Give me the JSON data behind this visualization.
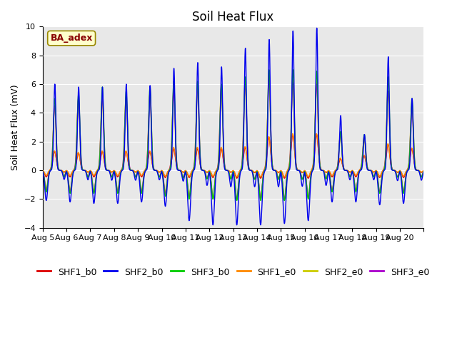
{
  "title": "Soil Heat Flux",
  "ylabel": "Soil Heat Flux (mV)",
  "xlabel": "",
  "ylim": [
    -4,
    10
  ],
  "yticks": [
    -4,
    -2,
    0,
    2,
    4,
    6,
    8,
    10
  ],
  "n_days": 16,
  "series_colors": {
    "SHF1_b0": "#dd0000",
    "SHF2_b0": "#0000ee",
    "SHF3_b0": "#00cc00",
    "SHF1_e0": "#ff8800",
    "SHF2_e0": "#cccc00",
    "SHF3_e0": "#aa00cc"
  },
  "annotation_text": "BA_adex",
  "bg_color": "#e8e8e8",
  "title_fontsize": 12,
  "label_fontsize": 9,
  "tick_fontsize": 8,
  "legend_fontsize": 9,
  "linewidth": 1.0,
  "shf2_b0_peaks": [
    6.0,
    5.8,
    5.8,
    6.0,
    5.9,
    7.1,
    7.5,
    7.2,
    8.5,
    9.1,
    9.7,
    9.9,
    3.8,
    2.5,
    7.9,
    5.0
  ],
  "shf2_b0_troughs": [
    2.1,
    2.2,
    2.3,
    2.3,
    2.2,
    2.5,
    3.5,
    3.8,
    3.8,
    3.8,
    3.7,
    3.5,
    2.2,
    2.2,
    2.4,
    2.3
  ],
  "shf3_b0_peaks": [
    5.0,
    5.3,
    5.8,
    5.5,
    5.8,
    6.2,
    6.2,
    6.0,
    6.5,
    7.0,
    7.0,
    6.9,
    2.7,
    2.5,
    6.5,
    5.0
  ],
  "shf3_b0_troughs": [
    1.5,
    1.6,
    1.6,
    1.6,
    1.6,
    1.8,
    2.0,
    2.0,
    2.1,
    2.1,
    2.1,
    2.0,
    1.5,
    1.5,
    1.6,
    1.6
  ],
  "shf1_b0_peaks": [
    1.3,
    1.2,
    1.3,
    1.3,
    1.3,
    1.5,
    1.5,
    1.5,
    1.6,
    2.3,
    2.5,
    2.5,
    0.8,
    1.0,
    1.8,
    1.5
  ],
  "shf1_b0_troughs": [
    0.45,
    0.45,
    0.45,
    0.45,
    0.45,
    0.5,
    0.5,
    0.5,
    0.55,
    0.55,
    0.55,
    0.55,
    0.45,
    0.45,
    0.5,
    0.5
  ],
  "shf1_e0_peaks": [
    1.35,
    1.25,
    1.35,
    1.35,
    1.35,
    1.6,
    1.6,
    1.6,
    1.65,
    2.35,
    2.55,
    2.55,
    0.85,
    1.05,
    1.85,
    1.55
  ],
  "shf1_e0_troughs": [
    0.35,
    0.35,
    0.35,
    0.35,
    0.35,
    0.4,
    0.4,
    0.4,
    0.45,
    0.45,
    0.45,
    0.45,
    0.35,
    0.35,
    0.4,
    0.4
  ],
  "shf2_e0_peaks": [
    4.5,
    4.9,
    5.0,
    5.0,
    5.3,
    5.6,
    5.8,
    5.9,
    6.1,
    6.5,
    6.3,
    6.2,
    2.5,
    2.3,
    5.5,
    4.5
  ],
  "shf2_e0_troughs": [
    1.3,
    1.4,
    1.4,
    1.4,
    1.4,
    1.5,
    1.8,
    1.9,
    2.0,
    2.0,
    2.0,
    1.9,
    1.4,
    1.4,
    1.5,
    1.5
  ],
  "shf3_e0_peaks": [
    4.5,
    5.0,
    5.1,
    5.1,
    5.3,
    5.5,
    5.7,
    5.8,
    6.0,
    6.3,
    6.1,
    6.0,
    2.5,
    2.4,
    5.5,
    4.5
  ],
  "shf3_e0_troughs": [
    1.4,
    1.5,
    1.5,
    1.5,
    1.5,
    1.6,
    1.9,
    2.0,
    2.0,
    2.0,
    2.0,
    1.9,
    1.4,
    1.4,
    1.5,
    1.5
  ]
}
